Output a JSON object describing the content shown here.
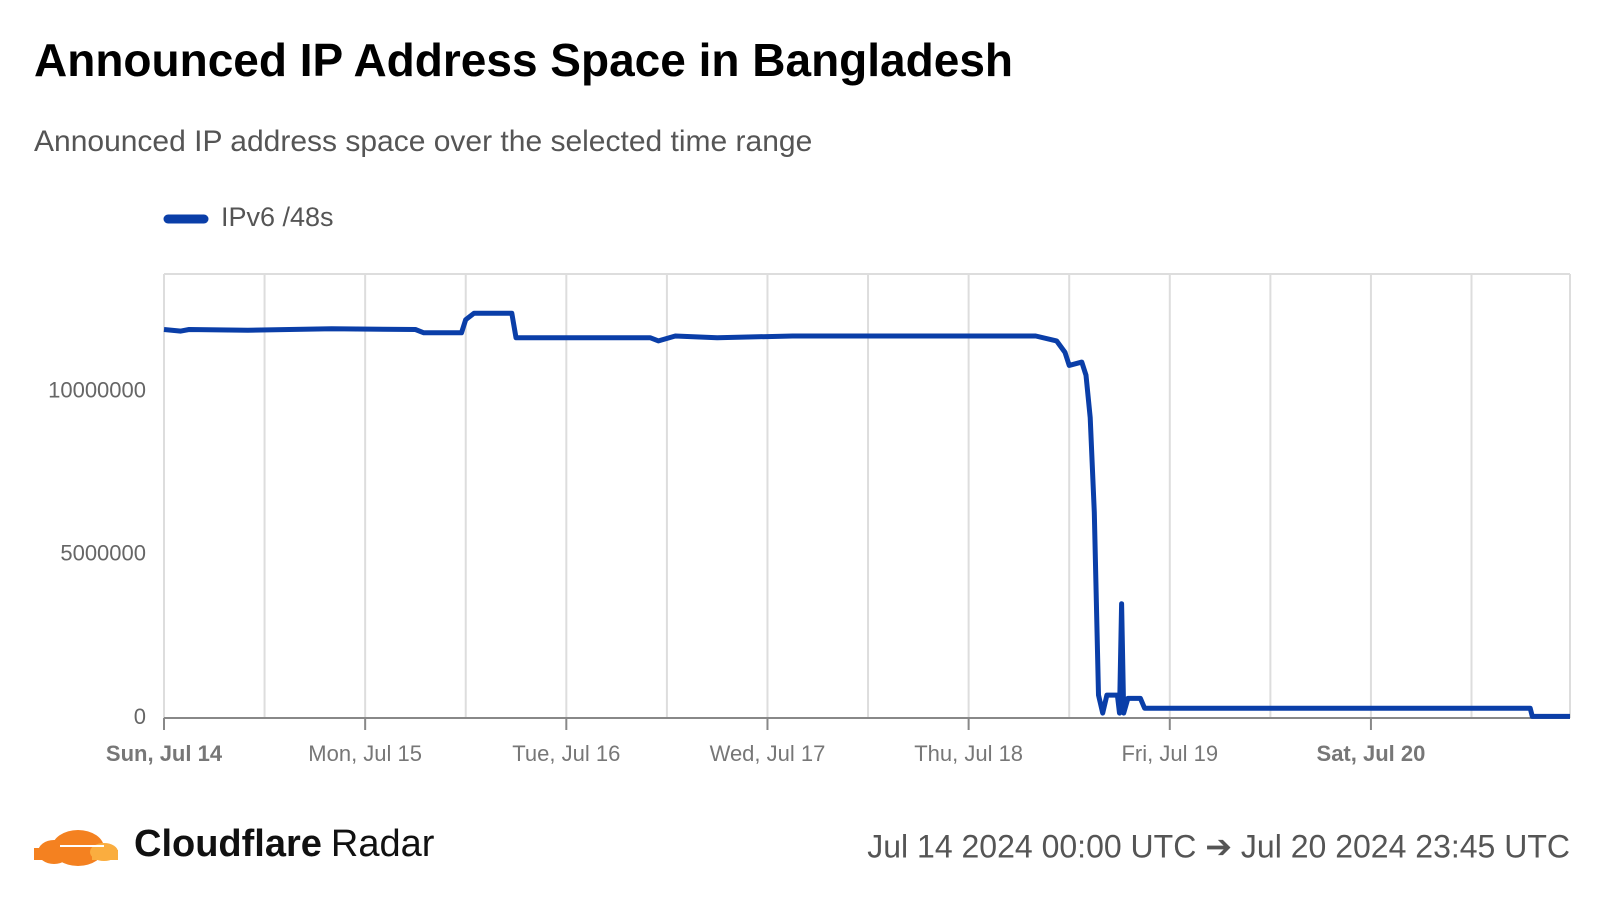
{
  "header": {
    "title": "Announced IP Address Space in Bangladesh",
    "subtitle": "Announced IP address space over the selected time range"
  },
  "chart_data": {
    "type": "line",
    "x": [
      "2024-07-14T00:00",
      "2024-07-14T02:00",
      "2024-07-14T03:00",
      "2024-07-14T10:00",
      "2024-07-14T20:00",
      "2024-07-15T06:00",
      "2024-07-15T07:00",
      "2024-07-15T11:30",
      "2024-07-15T12:00",
      "2024-07-15T13:00",
      "2024-07-15T17:30",
      "2024-07-15T18:00",
      "2024-07-16T10:00",
      "2024-07-16T11:00",
      "2024-07-16T13:00",
      "2024-07-16T18:00",
      "2024-07-17T03:00",
      "2024-07-17T23:00",
      "2024-07-18T08:00",
      "2024-07-18T10:30",
      "2024-07-18T11:30",
      "2024-07-18T12:00",
      "2024-07-18T13:30",
      "2024-07-18T14:00",
      "2024-07-18T14:30",
      "2024-07-18T15:00",
      "2024-07-18T15:30",
      "2024-07-18T16:00",
      "2024-07-18T16:30",
      "2024-07-18T17:45",
      "2024-07-18T18:00",
      "2024-07-18T18:15",
      "2024-07-18T18:30",
      "2024-07-18T19:00",
      "2024-07-18T20:30",
      "2024-07-18T21:00",
      "2024-07-20T19:00",
      "2024-07-20T19:15",
      "2024-07-20T23:45"
    ],
    "series": [
      {
        "name": "IPv6 /48s",
        "color": "#0a3ea8",
        "values": [
          11900000,
          11850000,
          11900000,
          11880000,
          11920000,
          11900000,
          11800000,
          11800000,
          12200000,
          12400000,
          12400000,
          11650000,
          11650000,
          11550000,
          11700000,
          11650000,
          11700000,
          11700000,
          11700000,
          11550000,
          11200000,
          10800000,
          10900000,
          10500000,
          9200000,
          6300000,
          700000,
          150000,
          700000,
          700000,
          150000,
          3500000,
          150000,
          600000,
          600000,
          300000,
          300000,
          50000,
          50000
        ]
      }
    ],
    "xlim": [
      "2024-07-14T00:00",
      "2024-07-20T23:45"
    ],
    "xticks": [
      {
        "value": "2024-07-14T00:00",
        "label": "Sun, Jul 14"
      },
      {
        "value": "2024-07-15T00:00",
        "label": "Mon, Jul 15"
      },
      {
        "value": "2024-07-16T00:00",
        "label": "Tue, Jul 16"
      },
      {
        "value": "2024-07-17T00:00",
        "label": "Wed, Jul 17"
      },
      {
        "value": "2024-07-18T00:00",
        "label": "Thu, Jul 18"
      },
      {
        "value": "2024-07-19T00:00",
        "label": "Fri, Jul 19"
      },
      {
        "value": "2024-07-20T00:00",
        "label": "Sat, Jul 20"
      }
    ],
    "ylim": [
      0,
      13600000
    ],
    "yticks": [
      0,
      5000000,
      10000000
    ],
    "grid": true
  },
  "footer": {
    "brand": "Cloudflare",
    "product": "Radar",
    "range": "Jul 14 2024 00:00 UTC ➔ Jul 20 2024 23:45 UTC"
  }
}
